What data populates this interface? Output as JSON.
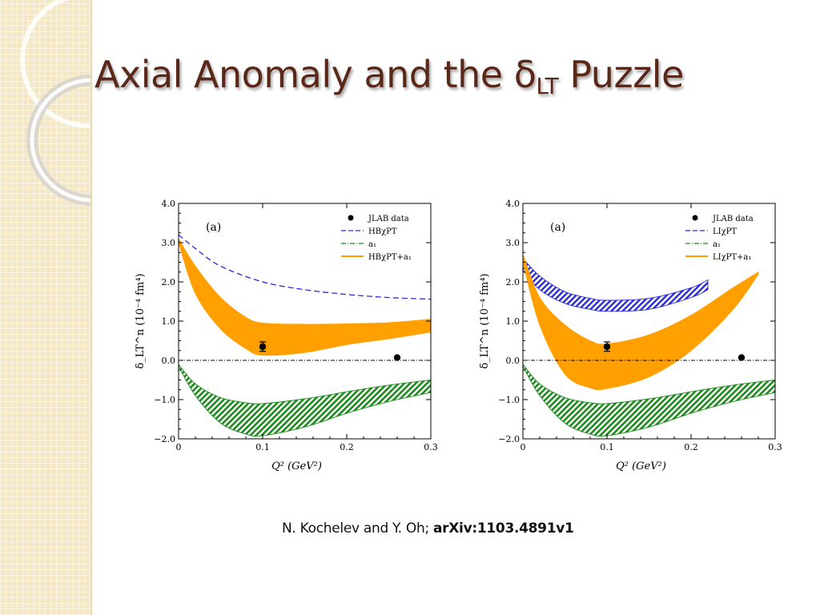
{
  "slide": {
    "title_main": "Axial Anomaly and the ",
    "title_symbol": "δ",
    "title_subscript": "LT",
    "title_tail": " Puzzle",
    "citation_authors": "N. Kochelev and Y. Oh; ",
    "citation_ref": "arXiv:1103.4891v1"
  },
  "colors": {
    "title": "#5a2818",
    "band_orange": "#ffa000",
    "band_green": "#1e8a1e",
    "curve_blue": "#2b2bd6"
  },
  "chart_data": [
    {
      "type": "line",
      "panel_label": "(a)",
      "xlabel": "Q² (GeV²)",
      "ylabel": "δ_LT^n (10⁻⁴ fm⁴)",
      "xlim": [
        0,
        0.3
      ],
      "ylim": [
        -2.0,
        4.0
      ],
      "x_ticks": [
        "0",
        "0.1",
        "0.2",
        "0.3"
      ],
      "y_ticks": [
        "−2.0",
        "−1.0",
        "0.0",
        "1.0",
        "2.0",
        "3.0",
        "4.0"
      ],
      "legend": [
        "JLAB data",
        "HBχPT",
        "a₁",
        "HBχPT+a₁"
      ],
      "legend_position": "top-right",
      "data_points": [
        {
          "x": 0.1,
          "y": 0.35,
          "err": 0.12
        },
        {
          "x": 0.26,
          "y": 0.07,
          "err": 0
        }
      ],
      "series": [
        {
          "name": "HBχPT",
          "style": "dashed",
          "x": [
            0,
            0.02,
            0.05,
            0.1,
            0.15,
            0.2,
            0.25,
            0.3
          ],
          "y": [
            3.2,
            2.85,
            2.4,
            2.0,
            1.8,
            1.68,
            1.6,
            1.56
          ]
        },
        {
          "name": "HBχPT+a₁",
          "style": "band",
          "x": [
            0,
            0.02,
            0.05,
            0.08,
            0.1,
            0.15,
            0.2,
            0.25,
            0.3
          ],
          "y_upper": [
            3.1,
            2.4,
            1.6,
            1.1,
            0.95,
            0.92,
            0.93,
            0.96,
            1.05
          ],
          "y_lower": [
            3.0,
            1.7,
            0.8,
            0.3,
            0.13,
            0.2,
            0.4,
            0.55,
            0.72
          ]
        },
        {
          "name": "a₁",
          "style": "hatched-band",
          "x": [
            0,
            0.02,
            0.05,
            0.08,
            0.1,
            0.15,
            0.2,
            0.25,
            0.3
          ],
          "y_upper": [
            -0.1,
            -0.6,
            -0.95,
            -1.08,
            -1.1,
            -0.98,
            -0.8,
            -0.63,
            -0.5
          ],
          "y_lower": [
            -0.15,
            -0.9,
            -1.6,
            -1.88,
            -1.92,
            -1.7,
            -1.35,
            -1.05,
            -0.82
          ]
        }
      ]
    },
    {
      "type": "line",
      "panel_label": "(a)",
      "xlabel": "Q² (GeV²)",
      "ylabel": "δ_LT^n (10⁻⁴ fm⁴)",
      "xlim": [
        0,
        0.3
      ],
      "ylim": [
        -2.0,
        4.0
      ],
      "x_ticks": [
        "0",
        "0.1",
        "0.2",
        "0.3"
      ],
      "y_ticks": [
        "−2.0",
        "−1.0",
        "0.0",
        "1.0",
        "2.0",
        "3.0",
        "4.0"
      ],
      "legend": [
        "JLAB data",
        "LIχPT",
        "a₁",
        "LIχPT+a₁"
      ],
      "legend_position": "top-right",
      "data_points": [
        {
          "x": 0.1,
          "y": 0.35,
          "err": 0.12
        },
        {
          "x": 0.26,
          "y": 0.07,
          "err": 0
        }
      ],
      "series": [
        {
          "name": "LIχPT",
          "style": "hatched-band",
          "x": [
            0,
            0.02,
            0.05,
            0.08,
            0.1,
            0.15,
            0.2,
            0.22
          ],
          "y_upper": [
            2.6,
            2.15,
            1.75,
            1.58,
            1.53,
            1.58,
            1.85,
            2.05
          ],
          "y_lower": [
            2.3,
            1.8,
            1.45,
            1.3,
            1.25,
            1.3,
            1.6,
            1.8
          ]
        },
        {
          "name": "LIχPT+a₁",
          "style": "band",
          "x": [
            0,
            0.02,
            0.05,
            0.08,
            0.1,
            0.15,
            0.2,
            0.25,
            0.28
          ],
          "y_upper": [
            2.7,
            1.6,
            0.9,
            0.5,
            0.42,
            0.65,
            1.15,
            1.85,
            2.25
          ],
          "y_lower": [
            2.5,
            0.9,
            -0.35,
            -0.7,
            -0.72,
            -0.42,
            0.25,
            1.3,
            2.2
          ]
        },
        {
          "name": "a₁",
          "style": "hatched-band",
          "x": [
            0,
            0.02,
            0.05,
            0.08,
            0.1,
            0.15,
            0.2,
            0.25,
            0.3
          ],
          "y_upper": [
            -0.1,
            -0.6,
            -0.95,
            -1.08,
            -1.1,
            -0.98,
            -0.8,
            -0.63,
            -0.5
          ],
          "y_lower": [
            -0.15,
            -0.9,
            -1.6,
            -1.88,
            -1.92,
            -1.7,
            -1.35,
            -1.05,
            -0.82
          ]
        }
      ]
    }
  ]
}
